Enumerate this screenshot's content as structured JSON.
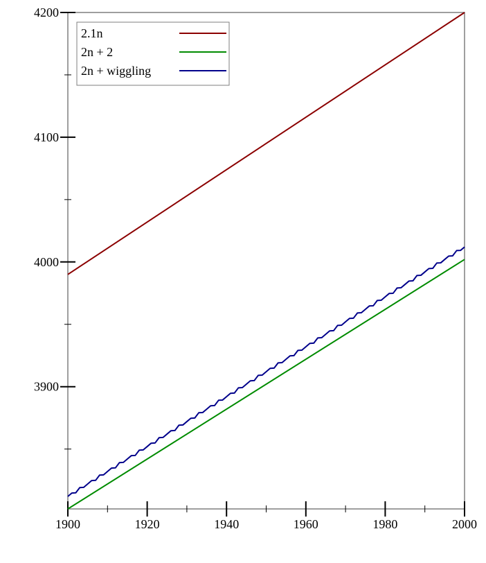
{
  "chart_data": {
    "type": "line",
    "title": "",
    "xlabel": "",
    "ylabel": "",
    "xlim": [
      1900,
      2000
    ],
    "ylim": [
      3802,
      4200
    ],
    "x_ticks": [
      1900,
      1920,
      1940,
      1960,
      1980,
      2000
    ],
    "x_tick_labels": [
      "1900",
      "1920",
      "1940",
      "1960",
      "1980",
      "2000"
    ],
    "x_minor_ticks": [
      1910,
      1930,
      1950,
      1970,
      1990
    ],
    "y_ticks": [
      3900,
      4000,
      4100,
      4200
    ],
    "y_tick_labels": [
      "3900",
      "4000",
      "4100",
      "4200"
    ],
    "y_minor_ticks": [
      3850,
      3950,
      4050,
      4150
    ],
    "grid": false,
    "legend_position": "top-left",
    "series": [
      {
        "name": "2.1n",
        "color": "#8b0000",
        "x": [
          1900,
          2000
        ],
        "y": [
          3990,
          4200
        ]
      },
      {
        "name": "2n + 2",
        "color": "#008b00",
        "x": [
          1900,
          2000
        ],
        "y": [
          3802,
          4002
        ]
      },
      {
        "name": "2n + wiggling",
        "color": "#00008b",
        "x": [
          1900,
          1901,
          1902,
          1903,
          1904,
          1905,
          1906,
          1907,
          1908,
          1909,
          1910,
          1911,
          1912,
          1913,
          1914,
          1915,
          1916,
          1917,
          1918,
          1919,
          1920,
          1921,
          1922,
          1923,
          1924,
          1925,
          1926,
          1927,
          1928,
          1929,
          1930,
          1931,
          1932,
          1933,
          1934,
          1935,
          1936,
          1937,
          1938,
          1939,
          1940,
          1941,
          1942,
          1943,
          1944,
          1945,
          1946,
          1947,
          1948,
          1949,
          1950,
          1951,
          1952,
          1953,
          1954,
          1955,
          1956,
          1957,
          1958,
          1959,
          1960,
          1961,
          1962,
          1963,
          1964,
          1965,
          1966,
          1967,
          1968,
          1969,
          1970,
          1971,
          1972,
          1973,
          1974,
          1975,
          1976,
          1977,
          1978,
          1979,
          1980,
          1981,
          1982,
          1983,
          1984,
          1985,
          1986,
          1987,
          1988,
          1989,
          1990,
          1991,
          1992,
          1993,
          1994,
          1995,
          1996,
          1997,
          1998,
          1999,
          2000
        ],
        "y": [
          3812,
          3814.7,
          3814.9,
          3819.1,
          3819.3,
          3822,
          3824.7,
          3824.9,
          3829.1,
          3829.3,
          3832,
          3834.7,
          3834.9,
          3839.1,
          3839.3,
          3842,
          3844.7,
          3844.9,
          3849.1,
          3849.3,
          3852,
          3854.7,
          3854.9,
          3859.1,
          3859.3,
          3862,
          3864.7,
          3864.9,
          3869.1,
          3869.3,
          3872,
          3874.7,
          3874.9,
          3879.1,
          3879.3,
          3882,
          3884.7,
          3884.9,
          3889.1,
          3889.3,
          3892,
          3894.7,
          3894.9,
          3899.1,
          3899.3,
          3902,
          3904.7,
          3904.9,
          3909.1,
          3909.3,
          3912,
          3914.7,
          3914.9,
          3919.1,
          3919.3,
          3922,
          3924.7,
          3924.9,
          3929.1,
          3929.3,
          3932,
          3934.7,
          3934.9,
          3939.1,
          3939.3,
          3942,
          3944.7,
          3944.9,
          3949.1,
          3949.3,
          3952,
          3954.7,
          3954.9,
          3959.1,
          3959.3,
          3962,
          3964.7,
          3964.9,
          3969.1,
          3969.3,
          3972,
          3974.7,
          3974.9,
          3979.1,
          3979.3,
          3982,
          3984.7,
          3984.9,
          3989.1,
          3989.3,
          3992,
          3994.7,
          3994.9,
          3999.1,
          3999.3,
          4002,
          4004.7,
          4004.9,
          4009.1,
          4009.3,
          4012
        ]
      }
    ]
  }
}
